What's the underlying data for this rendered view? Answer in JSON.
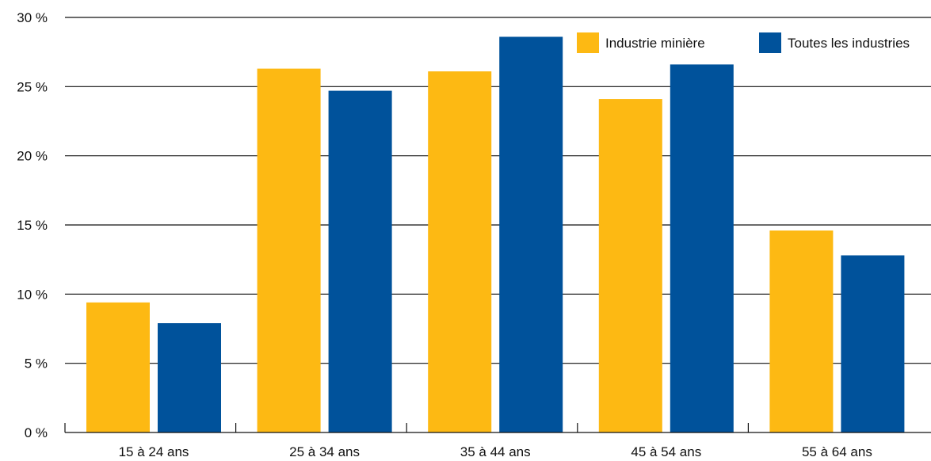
{
  "chart_data": {
    "type": "bar",
    "categories": [
      "15 à 24 ans",
      "25 à 34 ans",
      "35 à 44 ans",
      "45 à 54 ans",
      "55 à 64 ans"
    ],
    "series": [
      {
        "name": "Industrie minière",
        "values": [
          9.4,
          26.3,
          26.1,
          24.1,
          14.6
        ],
        "color": "#FDB913"
      },
      {
        "name": "Toutes les industries",
        "values": [
          7.9,
          24.7,
          28.6,
          26.6,
          12.8
        ],
        "color": "#00529B"
      }
    ],
    "ylim": [
      0,
      30
    ],
    "yticks": [
      0,
      5,
      10,
      15,
      20,
      25,
      30
    ],
    "ytick_labels": [
      "0 %",
      "5 %",
      "10 %",
      "15 %",
      "20 %",
      "25 %",
      "30 %"
    ],
    "grid": "horizontal",
    "legend_position": "top-right",
    "title": "",
    "xlabel": "",
    "ylabel": ""
  }
}
